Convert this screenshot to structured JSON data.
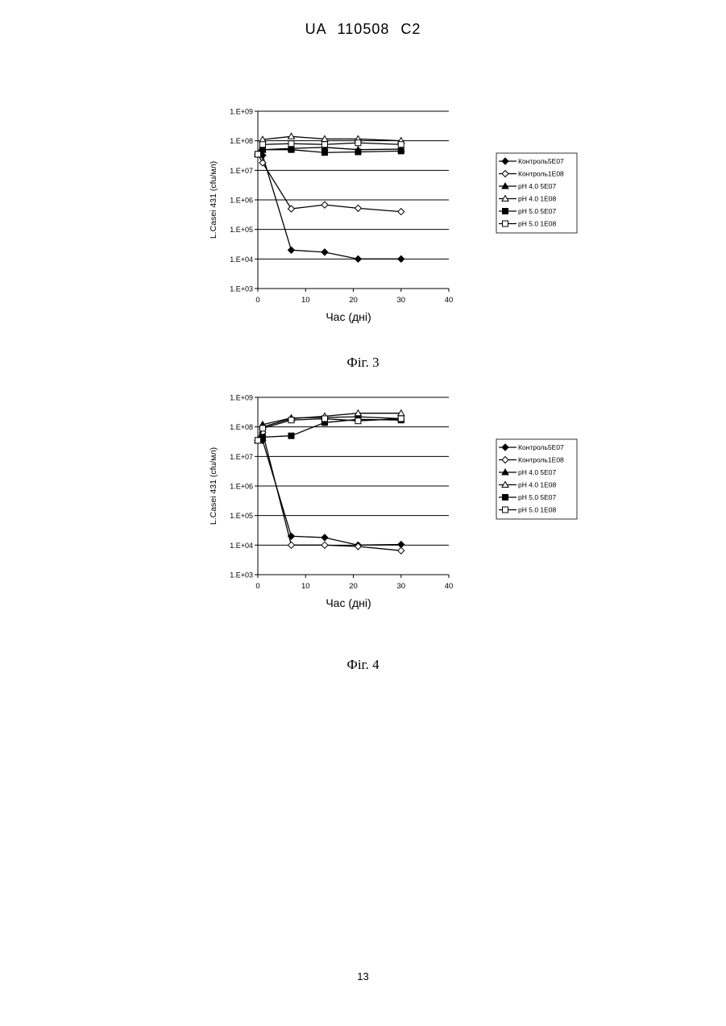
{
  "header": {
    "patent": "UA   110508   C2"
  },
  "page": {
    "number": "13"
  },
  "chart_data": [
    {
      "type": "line",
      "caption": "Фіг. 3",
      "xlabel": "Час (дні)",
      "ylabel": "L.Casei 431 (cfu/мл)",
      "y_scale": "log",
      "xlim": [
        0,
        40
      ],
      "ylim": [
        1000,
        1000000000
      ],
      "x_ticks": [
        "0",
        "10",
        "20",
        "30",
        "40"
      ],
      "y_ticks": [
        "1.E+03",
        "1.E+04",
        "1.E+05",
        "1.E+06",
        "1.E+07",
        "1.E+08",
        "1.E+09"
      ],
      "grid": "horizontal",
      "legend_position": "right",
      "series": [
        {
          "name": "Контроль5E07",
          "marker": "diamond-filled",
          "x": [
            0,
            1,
            7,
            14,
            21,
            30
          ],
          "y": [
            35000000,
            32000000,
            20000,
            17000,
            10000,
            10000
          ]
        },
        {
          "name": "Контроль1E08",
          "marker": "diamond-open",
          "x": [
            0,
            1,
            7,
            14,
            21,
            30
          ],
          "y": [
            35000000,
            18000000,
            500000,
            680000,
            520000,
            400000
          ]
        },
        {
          "name": "pH 4.0 5E07",
          "marker": "triangle-filled",
          "x": [
            0,
            1,
            7,
            14,
            21,
            30
          ],
          "y": [
            35000000,
            50000000,
            55000000,
            60000000,
            50000000,
            52000000
          ]
        },
        {
          "name": "pH 4.0 1E08",
          "marker": "triangle-open",
          "x": [
            0,
            1,
            7,
            14,
            21,
            30
          ],
          "y": [
            35000000,
            110000000,
            140000000,
            115000000,
            115000000,
            100000000
          ]
        },
        {
          "name": "pH 5.0 5E07",
          "marker": "square-filled",
          "x": [
            0,
            1,
            7,
            14,
            21,
            30
          ],
          "y": [
            35000000,
            50000000,
            50000000,
            40000000,
            42000000,
            45000000
          ]
        },
        {
          "name": "pH 5.0 1E08",
          "marker": "square-open",
          "x": [
            0,
            1,
            7,
            14,
            21,
            30
          ],
          "y": [
            35000000,
            75000000,
            80000000,
            75000000,
            85000000,
            75000000
          ]
        }
      ]
    },
    {
      "type": "line",
      "caption": "Фіг. 4",
      "xlabel": "Час (дні)",
      "ylabel": "L.Casei 431 (cfu/мл)",
      "y_scale": "log",
      "xlim": [
        0,
        40
      ],
      "ylim": [
        1000,
        1000000000
      ],
      "x_ticks": [
        "0",
        "10",
        "20",
        "30",
        "40"
      ],
      "y_ticks": [
        "1.E+03",
        "1.E+04",
        "1.E+05",
        "1.E+06",
        "1.E+07",
        "1.E+08",
        "1.E+09"
      ],
      "grid": "horizontal",
      "legend_position": "right",
      "series": [
        {
          "name": "Контроль5E07",
          "marker": "diamond-filled",
          "x": [
            0,
            1,
            7,
            14,
            21,
            30
          ],
          "y": [
            35000000,
            35000000,
            20000,
            18000,
            10000,
            10500
          ]
        },
        {
          "name": "Контроль1E08",
          "marker": "diamond-open",
          "x": [
            0,
            1,
            7,
            14,
            21,
            30
          ],
          "y": [
            35000000,
            65000000,
            10000,
            10000,
            9000,
            6500
          ]
        },
        {
          "name": "pH 4.0 5E07",
          "marker": "triangle-filled",
          "x": [
            0,
            1,
            7,
            14,
            21,
            30
          ],
          "y": [
            35000000,
            120000000,
            200000000,
            210000000,
            220000000,
            190000000
          ]
        },
        {
          "name": "pH 4.0 1E08",
          "marker": "triangle-open",
          "x": [
            0,
            1,
            7,
            14,
            21,
            30
          ],
          "y": [
            35000000,
            100000000,
            190000000,
            230000000,
            290000000,
            290000000
          ]
        },
        {
          "name": "pH 5.0 5E07",
          "marker": "square-filled",
          "x": [
            0,
            1,
            7,
            14,
            21,
            30
          ],
          "y": [
            35000000,
            45000000,
            50000000,
            140000000,
            180000000,
            170000000
          ]
        },
        {
          "name": "pH 5.0 1E08",
          "marker": "square-open",
          "x": [
            0,
            1,
            7,
            14,
            21,
            30
          ],
          "y": [
            35000000,
            90000000,
            170000000,
            190000000,
            160000000,
            190000000
          ]
        }
      ]
    }
  ]
}
